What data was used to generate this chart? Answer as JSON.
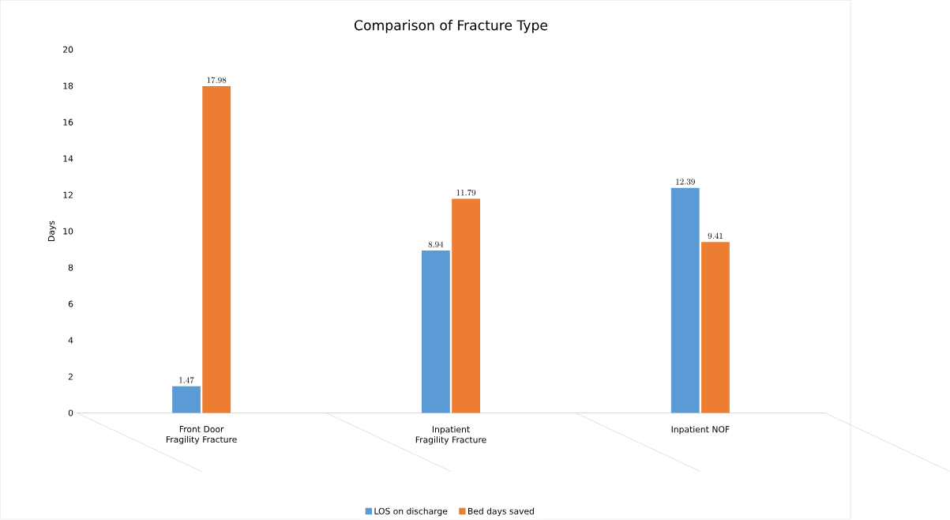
{
  "chart_data": {
    "type": "bar",
    "title": "Comparison of Fracture Type",
    "ylabel": "Days",
    "categories": [
      "Front Door Fragility Fracture",
      "Inpatient Fragility Fracture",
      "Inpatient NOF"
    ],
    "series": [
      {
        "name": "LOS on discharge",
        "color": "#5b9bd5",
        "values": [
          1.47,
          8.94,
          12.39
        ]
      },
      {
        "name": "Bed days saved",
        "color": "#ed7d31",
        "values": [
          17.98,
          11.79,
          9.41
        ]
      }
    ],
    "ylim": [
      0,
      20
    ],
    "yticks": [
      0,
      2,
      4,
      6,
      8,
      10,
      12,
      14,
      16,
      18,
      20
    ],
    "grid": false,
    "legend": "bottom",
    "data_labels": true
  }
}
